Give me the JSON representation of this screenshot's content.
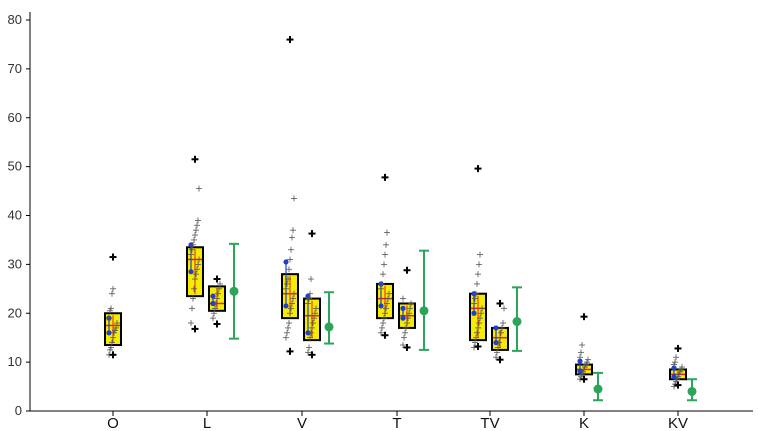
{
  "chart_data": {
    "type": "box",
    "title": "",
    "xlabel": "",
    "ylabel": "",
    "ylim": [
      0,
      80
    ],
    "yticks": [
      0,
      10,
      20,
      30,
      40,
      50,
      60,
      70,
      80
    ],
    "categories": [
      "O",
      "L",
      "V",
      "T",
      "TV",
      "K",
      "KV"
    ],
    "colors": {
      "box_fill": "#f5ec00",
      "box_stroke": "#000000",
      "median": "#e8202a",
      "mean_marker": "#1f3fd0",
      "dot_green": "#2aa55a",
      "outlier": "#000000",
      "jitter": "#555555"
    },
    "groups": [
      {
        "category": "O",
        "boxes": [
          {
            "q1": 13.5,
            "median": 17.5,
            "q3": 20,
            "jitter": [
              11.5,
              12.5,
              13,
              14,
              15,
              16,
              16.5,
              17,
              18,
              19,
              20.5,
              21,
              24,
              25
            ],
            "outliers": [
              31.5,
              11.5
            ],
            "means": [
              16,
              19
            ]
          }
        ],
        "errorbar": null
      },
      {
        "category": "L",
        "boxes": [
          {
            "q1": 23.5,
            "median": 31,
            "q3": 33.5,
            "jitter": [
              18,
              21,
              23,
              25,
              27,
              28,
              29,
              30,
              31,
              32,
              33,
              34,
              35,
              36,
              37,
              38,
              39,
              45.5
            ],
            "outliers": [
              51.5,
              16.8
            ],
            "means": [
              34,
              28.5
            ]
          },
          {
            "q1": 20.5,
            "median": 22,
            "q3": 25.5,
            "jitter": [
              19,
              20,
              21,
              22,
              23,
              24,
              25,
              26
            ],
            "outliers": [
              17.8,
              27
            ],
            "means": [
              23.5,
              22
            ]
          }
        ],
        "errorbar": {
          "mean": 24.5,
          "low": 14.8,
          "high": 34.2
        }
      },
      {
        "category": "V",
        "boxes": [
          {
            "q1": 19,
            "median": 24,
            "q3": 28,
            "jitter": [
              15,
              16,
              17,
              18,
              20,
              21,
              22,
              23,
              24,
              25,
              26,
              27,
              29,
              31,
              33,
              35.5,
              37,
              43.5
            ],
            "outliers": [
              76,
              12.2
            ],
            "means": [
              30.5,
              21.5
            ]
          },
          {
            "q1": 14.5,
            "median": 19.5,
            "q3": 23,
            "jitter": [
              12,
              13,
              15,
              16,
              17,
              18,
              19,
              20,
              21,
              22,
              23,
              24,
              27
            ],
            "outliers": [
              36.3,
              11.5
            ],
            "means": [
              23.5,
              16
            ]
          }
        ],
        "errorbar": {
          "mean": 17.2,
          "low": 13.8,
          "high": 24.3
        }
      },
      {
        "category": "T",
        "boxes": [
          {
            "q1": 19,
            "median": 23,
            "q3": 26,
            "jitter": [
              16,
              17,
              18,
              19,
              20,
              21,
              22,
              23,
              24,
              25,
              26,
              28,
              30,
              32,
              34,
              36.5
            ],
            "outliers": [
              47.8,
              15.5
            ],
            "means": [
              26,
              21.5
            ]
          },
          {
            "q1": 17,
            "median": 19.5,
            "q3": 22,
            "jitter": [
              13.5,
              15,
              16,
              17,
              18,
              19,
              20,
              21,
              22,
              23
            ],
            "outliers": [
              28.8,
              13
            ],
            "means": [
              21,
              19
            ]
          }
        ],
        "errorbar": {
          "mean": 20.5,
          "low": 12.5,
          "high": 32.8
        }
      },
      {
        "category": "TV",
        "boxes": [
          {
            "q1": 14.5,
            "median": 21,
            "q3": 24,
            "jitter": [
              13,
              14,
              15,
              16,
              17,
              18,
              19,
              20,
              21,
              22,
              23,
              24,
              26,
              28,
              30,
              32
            ],
            "outliers": [
              49.6,
              13.2
            ],
            "means": [
              24,
              20
            ]
          },
          {
            "q1": 12.5,
            "median": 15,
            "q3": 17,
            "jitter": [
              11,
              12,
              13,
              14,
              15,
              16,
              17,
              18,
              21
            ],
            "outliers": [
              22,
              10.5
            ],
            "means": [
              17,
              14
            ]
          }
        ],
        "errorbar": {
          "mean": 18.3,
          "low": 12.3,
          "high": 25.3
        }
      },
      {
        "category": "K",
        "boxes": [
          {
            "q1": 7.5,
            "median": 8.5,
            "q3": 9.5,
            "jitter": [
              6.5,
              7,
              7.5,
              8,
              8.5,
              9,
              9.5,
              10,
              10.5,
              11,
              12,
              13.5
            ],
            "outliers": [
              19.3,
              6.5
            ],
            "means": [
              10.2,
              8.2
            ]
          }
        ],
        "errorbar": {
          "mean": 4.5,
          "low": 2.2,
          "high": 7.8
        }
      },
      {
        "category": "KV",
        "boxes": [
          {
            "q1": 6.5,
            "median": 7.5,
            "q3": 8.5,
            "jitter": [
              5,
              5.5,
              6,
              6.5,
              7,
              7.5,
              8,
              8.5,
              9,
              9.5,
              10,
              11
            ],
            "outliers": [
              12.8,
              5.3
            ],
            "means": [
              8.8,
              7
            ]
          }
        ],
        "errorbar": {
          "mean": 4,
          "low": 2.2,
          "high": 6.5
        }
      }
    ]
  }
}
